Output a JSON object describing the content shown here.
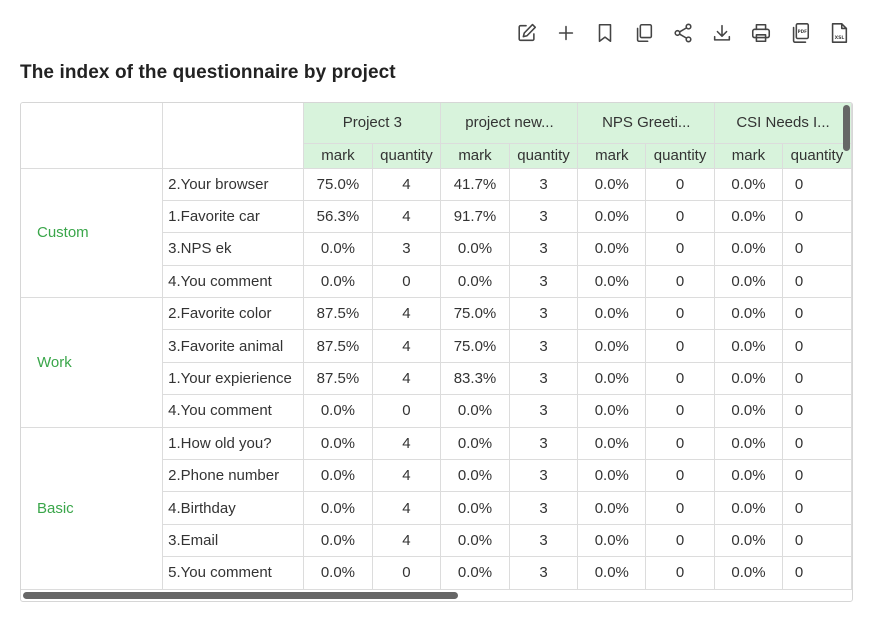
{
  "toolbar": {
    "icons": [
      "edit-icon",
      "plus-icon",
      "bookmark-icon",
      "copy-icon",
      "share-icon",
      "download-icon",
      "print-icon",
      "pdf-icon",
      "xsl-icon"
    ],
    "pdf_text": "PDF",
    "xsl_text": "XSL"
  },
  "title": "The index of the questionnaire by project",
  "table": {
    "projects": [
      "Project 3",
      "project new...",
      "NPS Greeti...",
      "CSI Needs I..."
    ],
    "sub_headers": [
      "mark",
      "quantity"
    ],
    "groups": [
      {
        "category": "Custom",
        "rows": [
          {
            "question": "2.Your browser",
            "values": [
              "75.0%",
              "4",
              "41.7%",
              "3",
              "0.0%",
              "0",
              "0.0%",
              "0"
            ]
          },
          {
            "question": "1.Favorite car",
            "values": [
              "56.3%",
              "4",
              "91.7%",
              "3",
              "0.0%",
              "0",
              "0.0%",
              "0"
            ]
          },
          {
            "question": "3.NPS ek",
            "values": [
              "0.0%",
              "3",
              "0.0%",
              "3",
              "0.0%",
              "0",
              "0.0%",
              "0"
            ]
          },
          {
            "question": "4.You comment",
            "values": [
              "0.0%",
              "0",
              "0.0%",
              "3",
              "0.0%",
              "0",
              "0.0%",
              "0"
            ]
          }
        ]
      },
      {
        "category": "Work",
        "rows": [
          {
            "question": "2.Favorite color",
            "values": [
              "87.5%",
              "4",
              "75.0%",
              "3",
              "0.0%",
              "0",
              "0.0%",
              "0"
            ]
          },
          {
            "question": "3.Favorite animal",
            "values": [
              "87.5%",
              "4",
              "75.0%",
              "3",
              "0.0%",
              "0",
              "0.0%",
              "0"
            ]
          },
          {
            "question": "1.Your expierience",
            "values": [
              "87.5%",
              "4",
              "83.3%",
              "3",
              "0.0%",
              "0",
              "0.0%",
              "0"
            ]
          },
          {
            "question": "4.You comment",
            "values": [
              "0.0%",
              "0",
              "0.0%",
              "3",
              "0.0%",
              "0",
              "0.0%",
              "0"
            ]
          }
        ]
      },
      {
        "category": "Basic",
        "rows": [
          {
            "question": "1.How old you?",
            "values": [
              "0.0%",
              "4",
              "0.0%",
              "3",
              "0.0%",
              "0",
              "0.0%",
              "0"
            ]
          },
          {
            "question": "2.Phone number",
            "values": [
              "0.0%",
              "4",
              "0.0%",
              "3",
              "0.0%",
              "0",
              "0.0%",
              "0"
            ]
          },
          {
            "question": "4.Birthday",
            "values": [
              "0.0%",
              "4",
              "0.0%",
              "3",
              "0.0%",
              "0",
              "0.0%",
              "0"
            ]
          },
          {
            "question": "3.Email",
            "values": [
              "0.0%",
              "4",
              "0.0%",
              "3",
              "0.0%",
              "0",
              "0.0%",
              "0"
            ]
          },
          {
            "question": "5.You comment",
            "values": [
              "0.0%",
              "0",
              "0.0%",
              "3",
              "0.0%",
              "0",
              "0.0%",
              "0"
            ]
          }
        ]
      }
    ]
  },
  "colors": {
    "header_bg": "#d8f3dc",
    "category_text": "#3aa64a",
    "border": "#dcdcdc",
    "scrollbar": "#666666"
  }
}
